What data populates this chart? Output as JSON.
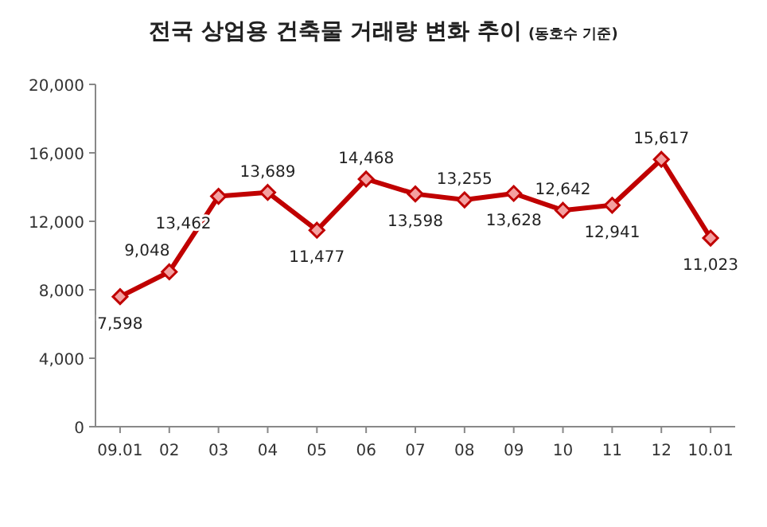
{
  "chart_data": {
    "type": "line",
    "title": "전국 상업용 건축물 거래량 변화 추이",
    "subtitle": "(동호수 기준)",
    "categories": [
      "09.01",
      "02",
      "03",
      "04",
      "05",
      "06",
      "07",
      "08",
      "09",
      "10",
      "11",
      "12",
      "10.01"
    ],
    "series": [
      {
        "color": "#c00000",
        "values": [
          7598,
          9048,
          13462,
          13689,
          11477,
          14468,
          13598,
          13255,
          13628,
          12642,
          12941,
          15617,
          11023
        ],
        "value_labels": [
          "7,598",
          "9,048",
          "13,462",
          "13,689",
          "11,477",
          "14,468",
          "13,598",
          "13,255",
          "13,628",
          "12,642",
          "12,941",
          "15,617",
          "11,023"
        ]
      }
    ],
    "ylim": [
      0,
      20000
    ],
    "yticks": [
      {
        "value": 0,
        "label": "0"
      },
      {
        "value": 4000,
        "label": "4,000"
      },
      {
        "value": 8000,
        "label": "8,000"
      },
      {
        "value": 12000,
        "label": "12,000"
      },
      {
        "value": 16000,
        "label": "16,000"
      },
      {
        "value": 20000,
        "label": "20,000"
      }
    ],
    "marker": "diamond",
    "line_style": "solid",
    "grid": false
  }
}
